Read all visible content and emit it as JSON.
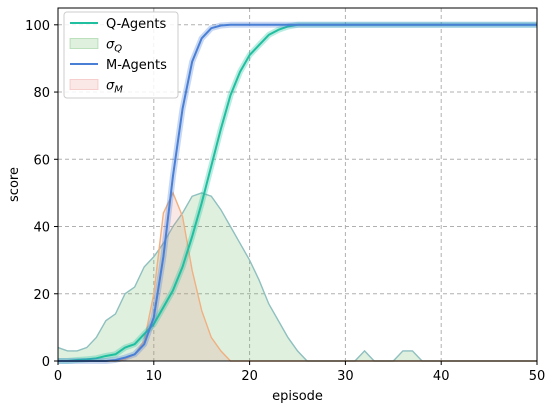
{
  "chart_data": {
    "type": "line",
    "xlabel": "episode",
    "ylabel": "score",
    "xlim": [
      0,
      50
    ],
    "ylim": [
      0,
      105
    ],
    "xticks": [
      0,
      10,
      20,
      30,
      40,
      50
    ],
    "yticks": [
      0,
      20,
      40,
      60,
      80,
      100
    ],
    "grid": true,
    "legend_position": "top-left",
    "legend": [
      {
        "label": "Q-Agents",
        "kind": "line",
        "color": "#1fbf9f"
      },
      {
        "label": "σ_Q",
        "main": "σ",
        "sub": "Q",
        "kind": "area",
        "color": "#5fb35f"
      },
      {
        "label": "M-Agents",
        "kind": "line",
        "color": "#4a7fd6"
      },
      {
        "label": "σ_M",
        "main": "σ",
        "sub": "M",
        "kind": "area",
        "color": "#e88a80"
      }
    ],
    "series": [
      {
        "name": "Q-Agents",
        "color": "#1fbf9f",
        "x": [
          0,
          1,
          2,
          3,
          4,
          5,
          6,
          7,
          8,
          9,
          10,
          11,
          12,
          13,
          14,
          15,
          16,
          17,
          18,
          19,
          20,
          21,
          22,
          23,
          24,
          25,
          26,
          27,
          28,
          29,
          30,
          35,
          40,
          45,
          50
        ],
        "y": [
          0,
          0,
          0.3,
          0.5,
          0.8,
          1.5,
          2,
          4,
          5,
          8,
          11,
          16,
          21,
          28,
          37,
          47,
          58,
          69,
          79,
          86,
          91,
          94,
          97,
          98.5,
          99.5,
          100,
          100,
          100,
          100,
          100,
          100,
          100,
          100,
          100,
          100
        ]
      },
      {
        "name": "M-Agents",
        "color": "#4a7fd6",
        "x": [
          0,
          1,
          2,
          3,
          4,
          5,
          6,
          7,
          8,
          9,
          10,
          11,
          12,
          13,
          14,
          15,
          16,
          17,
          18,
          19,
          20,
          25,
          30,
          35,
          40,
          45,
          50
        ],
        "y": [
          0,
          0,
          0,
          0,
          0,
          0,
          0.3,
          1,
          2,
          5,
          13,
          31,
          55,
          75,
          89,
          96,
          99,
          99.8,
          100,
          100,
          100,
          100,
          100,
          100,
          100,
          100,
          100
        ]
      }
    ],
    "areas": [
      {
        "name": "σ_Q",
        "color": "#5fb35f",
        "edge_color": "#8fbfbf",
        "x": [
          0,
          1,
          2,
          3,
          4,
          5,
          6,
          7,
          8,
          9,
          10,
          11,
          12,
          13,
          14,
          15,
          16,
          17,
          18,
          19,
          20,
          21,
          22,
          23,
          24,
          25,
          26,
          27,
          28,
          29,
          30,
          31,
          32,
          33,
          34,
          35,
          36,
          37,
          38,
          39,
          40,
          45,
          50
        ],
        "y": [
          4,
          3,
          3,
          4,
          7,
          12,
          14,
          20,
          22,
          28,
          31,
          35,
          40,
          44,
          49,
          50,
          49,
          45,
          40,
          35,
          30,
          24,
          17,
          12,
          7,
          3,
          0,
          0,
          0,
          0,
          0,
          0,
          3,
          0,
          0,
          0,
          3,
          3,
          0,
          0,
          0,
          0,
          0
        ]
      },
      {
        "name": "σ_M",
        "color": "#e88a80",
        "edge_color": "#f0b080",
        "x": [
          0,
          5,
          6,
          7,
          8,
          9,
          10,
          11,
          12,
          13,
          14,
          15,
          16,
          17,
          18,
          19,
          20,
          50
        ],
        "y": [
          0,
          0,
          0,
          0.5,
          2,
          6,
          20,
          44,
          50,
          43,
          27,
          15,
          7,
          3,
          0,
          0,
          0,
          0
        ]
      }
    ]
  }
}
